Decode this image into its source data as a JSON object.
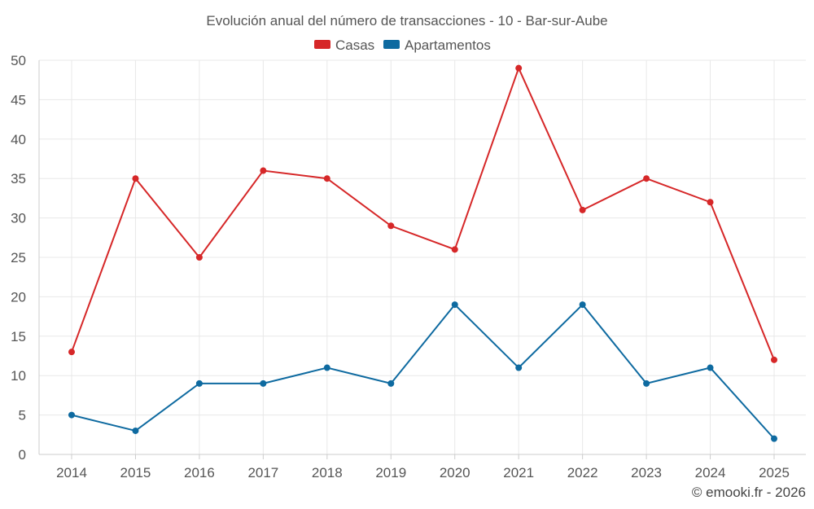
{
  "chart_data": {
    "type": "line",
    "title": "Evolución anual del número de transacciones - 10 - Bar-sur-Aube",
    "categories": [
      "2014",
      "2015",
      "2016",
      "2017",
      "2018",
      "2019",
      "2020",
      "2021",
      "2022",
      "2023",
      "2024",
      "2025"
    ],
    "series": [
      {
        "name": "Casas",
        "color": "#d62728",
        "values": [
          13,
          35,
          25,
          36,
          35,
          29,
          26,
          49,
          31,
          35,
          32,
          12
        ]
      },
      {
        "name": "Apartamentos",
        "color": "#0e6aa0",
        "values": [
          5,
          3,
          9,
          9,
          11,
          9,
          19,
          11,
          19,
          9,
          11,
          2
        ]
      }
    ],
    "ylim": [
      0,
      50
    ],
    "yticks": [
      0,
      5,
      10,
      15,
      20,
      25,
      30,
      35,
      40,
      45,
      50
    ],
    "xlabel": "",
    "ylabel": "",
    "grid": true,
    "legend_position": "top-center"
  },
  "credit": "© emooki.fr - 2026"
}
